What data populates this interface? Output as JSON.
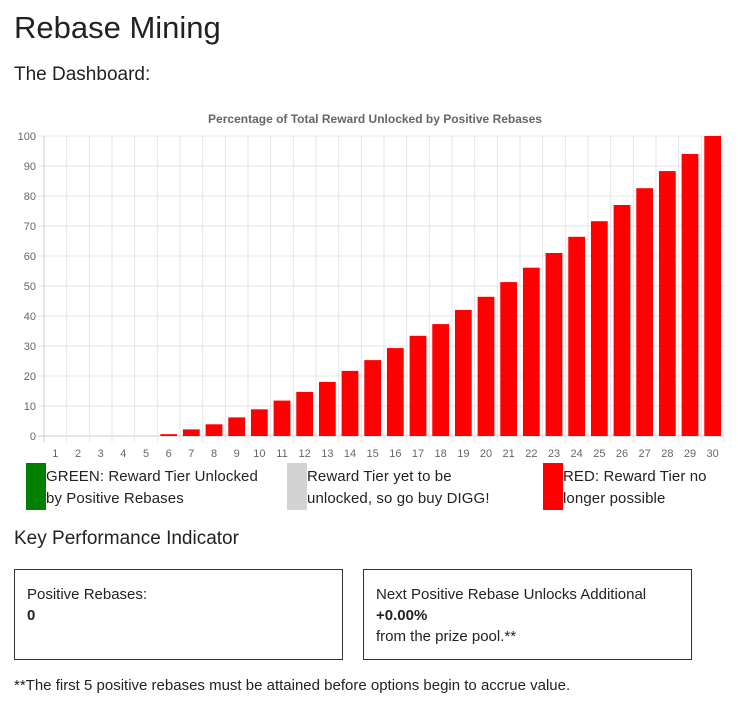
{
  "page": {
    "title": "Rebase Mining",
    "subtitle": "The Dashboard:"
  },
  "chart_data": {
    "type": "bar",
    "title": "Percentage of Total Reward Unlocked by Positive Rebases",
    "xlabel": "",
    "ylabel": "",
    "ylim": [
      0,
      100
    ],
    "yticks": [
      0,
      10,
      20,
      30,
      40,
      50,
      60,
      70,
      80,
      90,
      100
    ],
    "grid": true,
    "categories": [
      "1",
      "2",
      "3",
      "4",
      "5",
      "6",
      "7",
      "8",
      "9",
      "10",
      "11",
      "12",
      "13",
      "14",
      "15",
      "16",
      "17",
      "18",
      "19",
      "20",
      "21",
      "22",
      "23",
      "24",
      "25",
      "26",
      "27",
      "28",
      "29",
      "30"
    ],
    "values": [
      0,
      0,
      0,
      0,
      0,
      0.6,
      2.2,
      3.9,
      6.2,
      8.9,
      11.8,
      14.7,
      18.0,
      21.7,
      25.3,
      29.3,
      33.4,
      37.3,
      42.0,
      46.4,
      51.3,
      56.1,
      61.0,
      66.4,
      71.6,
      77.0,
      82.6,
      88.3,
      94.0,
      100
    ],
    "colors": [
      "#ff0000"
    ]
  },
  "legend": [
    {
      "color": "#008000",
      "line1": "GREEN: Reward Tier Unlocked",
      "line2": "by Positive Rebases"
    },
    {
      "color": "#d3d3d3",
      "line1": "Reward Tier yet to be",
      "line2": "unlocked, so go buy DIGG!"
    },
    {
      "color": "#ff0000",
      "line1": "RED: Reward Tier no",
      "line2": "longer possible"
    }
  ],
  "kpi": {
    "heading": "Key Performance Indicator",
    "positive_rebases_label": "Positive Rebases:",
    "positive_rebases_value": "0",
    "next_unlock_label": "Next Positive Rebase Unlocks Additional",
    "next_unlock_value": "+0.00%",
    "next_unlock_suffix": "from the prize pool.**"
  },
  "footnote": "**The first 5 positive rebases must be attained before options begin to accrue value."
}
